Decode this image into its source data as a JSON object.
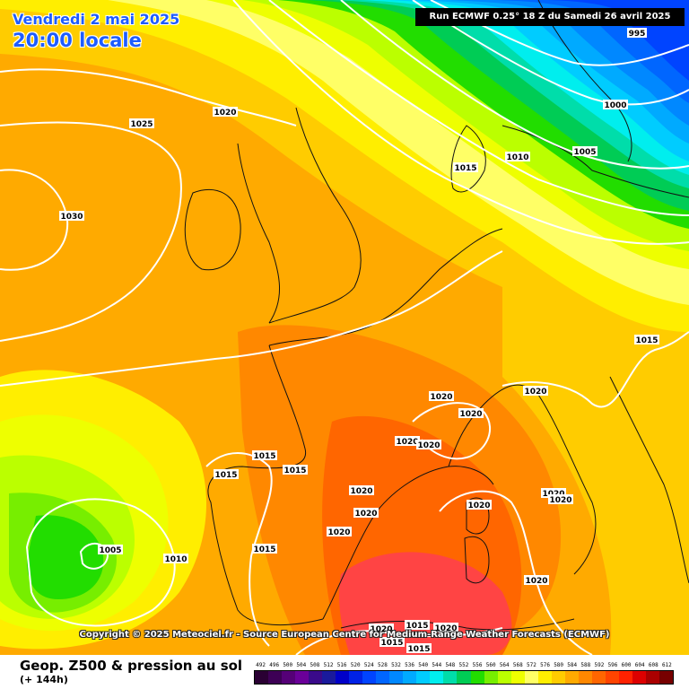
{
  "header": {
    "title_date": "Vendredi 2 mai 2025",
    "title_time": "20:00 locale",
    "run_info": "Run ECMWF 0.25° 18 Z du Samedi 26 avril 2025"
  },
  "credit": "Copyright © 2025 Meteociel.fr - Source European Centre for Medium-Range Weather Forecasts (ECMWF)",
  "footer": {
    "field_title": "Geop. Z500 & pression au sol",
    "forecast_hour": "(+ 144h)"
  },
  "color_scale": {
    "labels": [
      "492",
      "496",
      "500",
      "504",
      "508",
      "512",
      "516",
      "520",
      "524",
      "528",
      "532",
      "536",
      "540",
      "544",
      "548",
      "552",
      "556",
      "560",
      "564",
      "568",
      "572",
      "576",
      "580",
      "584",
      "588",
      "592",
      "596",
      "600",
      "604",
      "608",
      "612"
    ],
    "colors": [
      "#2a0033",
      "#3d0055",
      "#550077",
      "#6a0099",
      "#3a0a8a",
      "#1a1a9c",
      "#0000c8",
      "#0022e6",
      "#0044ff",
      "#0066ff",
      "#0088ff",
      "#00aaff",
      "#00ccff",
      "#00eeee",
      "#00ddaa",
      "#00cc55",
      "#22dd00",
      "#77ee00",
      "#bbff00",
      "#eeff00",
      "#ffff66",
      "#ffee00",
      "#ffcc00",
      "#ffaa00",
      "#ff8800",
      "#ff6600",
      "#ff4400",
      "#ff2200",
      "#dd0000",
      "#aa0000",
      "#770000"
    ]
  },
  "isobar_labels": [
    {
      "text": "995"
    },
    {
      "text": "1000"
    },
    {
      "text": "1005"
    },
    {
      "text": "1010"
    },
    {
      "text": "1015"
    },
    {
      "text": "1020"
    },
    {
      "text": "1025"
    },
    {
      "text": "1030"
    },
    {
      "text": "1005"
    },
    {
      "text": "1010"
    },
    {
      "text": "1015"
    },
    {
      "text": "1015"
    },
    {
      "text": "1015"
    },
    {
      "text": "1015"
    },
    {
      "text": "1020"
    },
    {
      "text": "1020"
    },
    {
      "text": "1020"
    },
    {
      "text": "1020"
    },
    {
      "text": "1020"
    },
    {
      "text": "1020"
    },
    {
      "text": "1020"
    },
    {
      "text": "1020"
    },
    {
      "text": "1020"
    },
    {
      "text": "1020"
    },
    {
      "text": "1020"
    },
    {
      "text": "1020"
    },
    {
      "text": "1015"
    },
    {
      "text": "1015"
    },
    {
      "text": "1020"
    },
    {
      "text": "1020"
    },
    {
      "text": "1015"
    },
    {
      "text": "1015"
    }
  ]
}
